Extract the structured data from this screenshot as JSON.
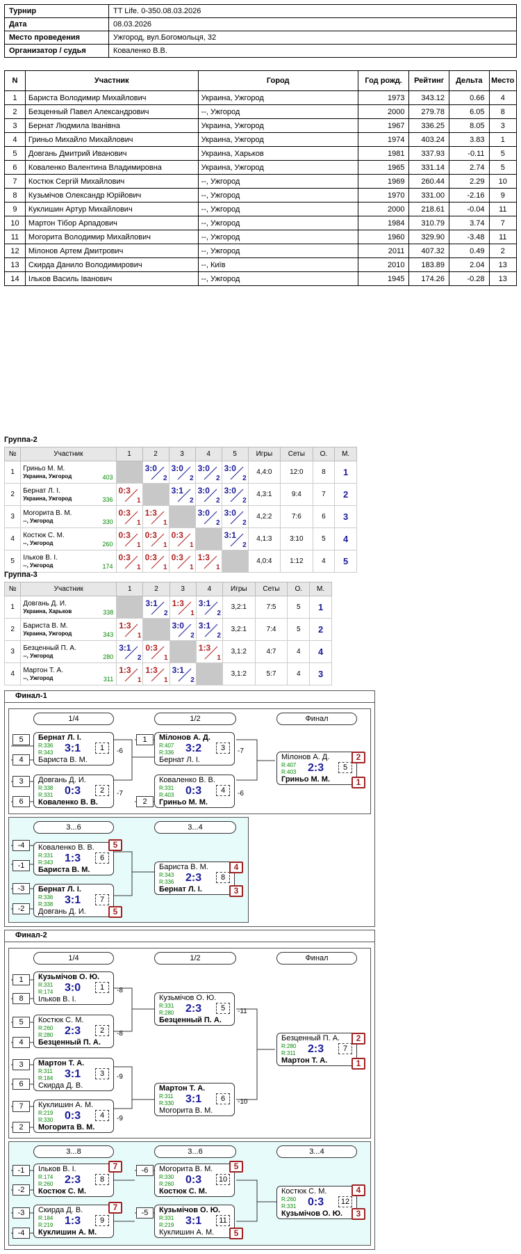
{
  "info": [
    {
      "k": "Турнир",
      "v": "TT Life. 0-350.08.03.2026"
    },
    {
      "k": "Дата",
      "v": "08.03.2026"
    },
    {
      "k": "Место проведения",
      "v": "Ужгород, вул.Богомольця, 32"
    },
    {
      "k": "Организатор / судья",
      "v": "Коваленко В.В."
    }
  ],
  "participants": {
    "headers": [
      "N",
      "Участник",
      "Город",
      "Год рожд.",
      "Рейтинг",
      "Дельта",
      "Место"
    ],
    "rows": [
      [
        "1",
        "Бариста Володимир Михайлович",
        "Украина, Ужгород",
        "1973",
        "343.12",
        "0.66",
        "4"
      ],
      [
        "2",
        "Безценный Павел Александрович",
        "--, Ужгород",
        "2000",
        "279.78",
        "6.05",
        "8"
      ],
      [
        "3",
        "Бернат Людмила Іванівна",
        "Украина, Ужгород",
        "1967",
        "336.25",
        "8.05",
        "3"
      ],
      [
        "4",
        "Гриньо Михайло Михайлович",
        "Украина, Ужгород",
        "1974",
        "403.24",
        "3.83",
        "1"
      ],
      [
        "5",
        "Довгань Дмитрий Иванович",
        "Украина, Харьков",
        "1981",
        "337.93",
        "-0.11",
        "5"
      ],
      [
        "6",
        "Коваленко Валентина Владимировна",
        "Украина, Ужгород",
        "1965",
        "331.14",
        "2.74",
        "5"
      ],
      [
        "7",
        "Костюк Сергій Михайлович",
        "--, Ужгород",
        "1969",
        "260.44",
        "2.29",
        "10"
      ],
      [
        "8",
        "Кузьмічов Олександр Юрійович",
        "--, Ужгород",
        "1970",
        "331.00",
        "-2.16",
        "9"
      ],
      [
        "9",
        "Куклишин Артур Михайлович",
        "--, Ужгород",
        "2000",
        "218.61",
        "-0.04",
        "11"
      ],
      [
        "10",
        "Мартон Тібор Арпадович",
        "--, Ужгород",
        "1984",
        "310.79",
        "3.74",
        "7"
      ],
      [
        "11",
        "Могорита Володимир Михайлович",
        "--, Ужгород",
        "1960",
        "329.90",
        "-3.48",
        "11"
      ],
      [
        "12",
        "Мілонов Артем Дмитрович",
        "--, Ужгород",
        "2011",
        "407.32",
        "0.49",
        "2"
      ],
      [
        "13",
        "Скирда Данило Володимирович",
        "--, Київ",
        "2010",
        "183.89",
        "2.04",
        "13"
      ],
      [
        "14",
        "Ільков Василь Іванович",
        "--, Ужгород",
        "1945",
        "174.26",
        "-0.28",
        "13"
      ]
    ]
  },
  "groups": [
    {
      "title": "Группа-2",
      "headers": [
        "№",
        "Участник",
        "1",
        "2",
        "3",
        "4",
        "5",
        "Игры",
        "Сеты",
        "О.",
        "М."
      ],
      "rows": [
        {
          "n": "1",
          "name": "Гриньо М. М.",
          "city": "Украина, Ужгород",
          "rating": "403",
          "res": [
            "",
            "3:0|2|w",
            "3:0|2|w",
            "3:0|2|w",
            "3:0|2|w"
          ],
          "games": "4,4:0",
          "sets": "12:0",
          "pts": "8",
          "place": "1"
        },
        {
          "n": "2",
          "name": "Бернат Л. І.",
          "city": "Украина, Ужгород",
          "rating": "336",
          "res": [
            "0:3|1|l",
            "",
            "3:1|2|w",
            "3:0|2|w",
            "3:0|2|w"
          ],
          "games": "4,3:1",
          "sets": "9:4",
          "pts": "7",
          "place": "2"
        },
        {
          "n": "3",
          "name": "Могорита В. М.",
          "city": "--, Ужгород",
          "rating": "330",
          "res": [
            "0:3|1|l",
            "1:3|1|l",
            "",
            "3:0|2|w",
            "3:0|2|w"
          ],
          "games": "4,2:2",
          "sets": "7:6",
          "pts": "6",
          "place": "3"
        },
        {
          "n": "4",
          "name": "Костюк С. М.",
          "city": "--, Ужгород",
          "rating": "260",
          "res": [
            "0:3|1|l",
            "0:3|1|l",
            "0:3|1|l",
            "",
            "3:1|2|w"
          ],
          "games": "4,1:3",
          "sets": "3:10",
          "pts": "5",
          "place": "4"
        },
        {
          "n": "5",
          "name": "Ільков В. І.",
          "city": "--, Ужгород",
          "rating": "174",
          "res": [
            "0:3|1|l",
            "0:3|1|l",
            "0:3|1|l",
            "1:3|1|l",
            ""
          ],
          "games": "4,0:4",
          "sets": "1:12",
          "pts": "4",
          "place": "5"
        }
      ]
    },
    {
      "title": "Группа-3",
      "headers": [
        "№",
        "Участник",
        "1",
        "2",
        "3",
        "4",
        "Игры",
        "Сеты",
        "О.",
        "М."
      ],
      "rows": [
        {
          "n": "1",
          "name": "Довгань Д. И.",
          "city": "Украина, Харьков",
          "rating": "338",
          "res": [
            "",
            "3:1|2|w",
            "1:3|1|l",
            "3:1|2|w"
          ],
          "games": "3,2:1",
          "sets": "7:5",
          "pts": "5",
          "place": "1"
        },
        {
          "n": "2",
          "name": "Бариста В. М.",
          "city": "Украина, Ужгород",
          "rating": "343",
          "res": [
            "1:3|1|l",
            "",
            "3:0|2|w",
            "3:1|2|w"
          ],
          "games": "3,2:1",
          "sets": "7:4",
          "pts": "5",
          "place": "2"
        },
        {
          "n": "3",
          "name": "Безценный П. А.",
          "city": "--, Ужгород",
          "rating": "280",
          "res": [
            "3:1|2|w",
            "0:3|1|l",
            "",
            "1:3|1|l"
          ],
          "games": "3,1:2",
          "sets": "4:7",
          "pts": "4",
          "place": "4"
        },
        {
          "n": "4",
          "name": "Мартон Т. А.",
          "city": "--, Ужгород",
          "rating": "311",
          "res": [
            "1:3|1|l",
            "1:3|1|l",
            "3:1|2|w",
            ""
          ],
          "games": "3,1:2",
          "sets": "5:7",
          "pts": "4",
          "place": "3"
        }
      ]
    }
  ],
  "finals": [
    {
      "title": "Финал-1",
      "rounds": [
        "1/4",
        "1/2",
        "Финал"
      ],
      "rounds2": [
        "3...6",
        "3...4"
      ],
      "seeds": [
        "5",
        "4",
        "3",
        "6",
        "1",
        "2",
        "-4",
        "-1",
        "-3",
        "-2"
      ],
      "matches": [
        {
          "p1": "Бернат Л. І.",
          "p2": "Бариста В. М.",
          "r1": "R:336",
          "r2": "R:343",
          "score": "3:1",
          "num": "1",
          "w": 1,
          "loser": "-6"
        },
        {
          "p1": "Довгань Д. И.",
          "p2": "Коваленко В. В.",
          "r1": "R:338",
          "r2": "R:331",
          "score": "0:3",
          "num": "2",
          "w": 2,
          "loser": "-7"
        },
        {
          "p1": "Мілонов А. Д.",
          "p2": "Бернат Л. І.",
          "r1": "R:407",
          "r2": "R:336",
          "score": "3:2",
          "num": "3",
          "w": 1,
          "loser": "-7"
        },
        {
          "p1": "Коваленко В. В.",
          "p2": "Гриньо М. М.",
          "r1": "R:331",
          "r2": "R:403",
          "score": "0:3",
          "num": "4",
          "w": 2,
          "loser": "-6"
        },
        {
          "p1": "Мілонов А. Д.",
          "p2": "Гриньо М. М.",
          "r1": "R:407",
          "r2": "R:403",
          "score": "2:3",
          "num": "5",
          "w": 2,
          "loser": ""
        },
        {
          "p1": "Коваленко В. В.",
          "p2": "Бариста В. М.",
          "r1": "R:331",
          "r2": "R:343",
          "score": "1:3",
          "num": "6",
          "w": 2,
          "loser": ""
        },
        {
          "p1": "Бернат Л. І.",
          "p2": "Довгань Д. И.",
          "r1": "R:336",
          "r2": "R:338",
          "score": "3:1",
          "num": "7",
          "w": 1,
          "loser": ""
        },
        {
          "p1": "Бариста В. М.",
          "p2": "Бернат Л. І.",
          "r1": "R:343",
          "r2": "R:336",
          "score": "2:3",
          "num": "8",
          "w": 2,
          "loser": ""
        }
      ],
      "places": [
        "2",
        "1",
        "5",
        "5",
        "4",
        "3"
      ]
    },
    {
      "title": "Финал-2",
      "rounds": [
        "1/4",
        "1/2",
        "Финал"
      ],
      "rounds2": [
        "3...8",
        "3...6",
        "3...4"
      ],
      "seeds": [
        "1",
        "8",
        "5",
        "4",
        "3",
        "6",
        "7",
        "2",
        "-1",
        "-2",
        "-3",
        "-4",
        "-6",
        "-5"
      ],
      "matches": [
        {
          "p1": "Кузьмічов О. Ю.",
          "p2": "Ільков В. І.",
          "r1": "R:331",
          "r2": "R:174",
          "score": "3:0",
          "num": "1",
          "w": 1,
          "loser": "-8"
        },
        {
          "p1": "Костюк С. М.",
          "p2": "Безценный П. А.",
          "r1": "R:260",
          "r2": "R:280",
          "score": "2:3",
          "num": "2",
          "w": 2,
          "loser": "-8"
        },
        {
          "p1": "Мартон Т. А.",
          "p2": "Скирда Д. В.",
          "r1": "R:311",
          "r2": "R:184",
          "score": "3:1",
          "num": "3",
          "w": 1,
          "loser": "-9"
        },
        {
          "p1": "Куклишин А. М.",
          "p2": "Могорита В. М.",
          "r1": "R:219",
          "r2": "R:330",
          "score": "0:3",
          "num": "4",
          "w": 2,
          "loser": "-9"
        },
        {
          "p1": "Кузьмічов О. Ю.",
          "p2": "Безценный П. А.",
          "r1": "R:331",
          "r2": "R:280",
          "score": "2:3",
          "num": "5",
          "w": 2,
          "loser": "-11"
        },
        {
          "p1": "Мартон Т. А.",
          "p2": "Могорита В. М.",
          "r1": "R:311",
          "r2": "R:330",
          "score": "3:1",
          "num": "6",
          "w": 1,
          "loser": "-10"
        },
        {
          "p1": "Безценный П. А.",
          "p2": "Мартон Т. А.",
          "r1": "R:280",
          "r2": "R:311",
          "score": "2:3",
          "num": "7",
          "w": 2,
          "loser": ""
        },
        {
          "p1": "Ільков В. І.",
          "p2": "Костюк С. М.",
          "r1": "R:174",
          "r2": "R:260",
          "score": "2:3",
          "num": "8",
          "w": 2,
          "loser": ""
        },
        {
          "p1": "Скирда Д. В.",
          "p2": "Куклишин А. М.",
          "r1": "R:184",
          "r2": "R:219",
          "score": "1:3",
          "num": "9",
          "w": 2,
          "loser": ""
        },
        {
          "p1": "Могорита В. М.",
          "p2": "Костюк С. М.",
          "r1": "R:330",
          "r2": "R:260",
          "score": "0:3",
          "num": "10",
          "w": 2,
          "loser": ""
        },
        {
          "p1": "Кузьмічов О. Ю.",
          "p2": "Куклишин А. М.",
          "r1": "R:331",
          "r2": "R:219",
          "score": "3:1",
          "num": "11",
          "w": 1,
          "loser": ""
        },
        {
          "p1": "Костюк С. М.",
          "p2": "Кузьмічов О. Ю.",
          "r1": "R:260",
          "r2": "R:331",
          "score": "0:3",
          "num": "12",
          "w": 2,
          "loser": ""
        }
      ],
      "places": [
        "2",
        "1",
        "7",
        "7",
        "5",
        "5",
        "4",
        "3"
      ]
    }
  ],
  "colors": {
    "win": "#1a1a9a",
    "loss": "#b02020",
    "rating": "#008800",
    "diag": "#c8c8c8",
    "cyan": "#e8fbfb"
  }
}
